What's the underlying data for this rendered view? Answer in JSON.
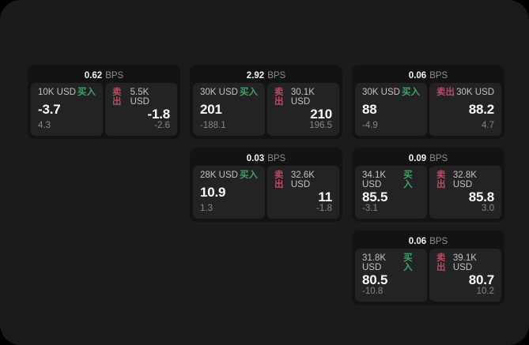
{
  "labels": {
    "bps": "BPS",
    "buy": "买入",
    "sell": "卖出"
  },
  "colors": {
    "background": "#000000",
    "surface": "#1b1b1d",
    "card": "#131315",
    "panel": "#232326",
    "buy_green": "#3aa565",
    "sell_red": "#bf4a5f"
  },
  "cards": [
    {
      "bps": "0.62",
      "buy": {
        "amount": "10K USD",
        "price": "-3.7",
        "sub": "4.3"
      },
      "sell": {
        "amount": "5.5K USD",
        "price": "-1.8",
        "sub": "-2.6"
      }
    },
    {
      "bps": "2.92",
      "buy": {
        "amount": "30K USD",
        "price": "201",
        "sub": "-188.1"
      },
      "sell": {
        "amount": "30.1K USD",
        "price": "210",
        "sub": "196.5"
      }
    },
    {
      "bps": "0.06",
      "buy": {
        "amount": "30K USD",
        "price": "88",
        "sub": "-4.9"
      },
      "sell": {
        "amount": "30K USD",
        "price": "88.2",
        "sub": "4.7"
      }
    },
    {
      "bps": "0.03",
      "buy": {
        "amount": "28K USD",
        "price": "10.9",
        "sub": "1.3"
      },
      "sell": {
        "amount": "32.6K USD",
        "price": "11",
        "sub": "-1.8"
      }
    },
    {
      "bps": "0.09",
      "buy": {
        "amount": "34.1K USD",
        "price": "85.5",
        "sub": "-3.1"
      },
      "sell": {
        "amount": "32.8K USD",
        "price": "85.8",
        "sub": "3.0"
      }
    },
    {
      "bps": "0.06",
      "buy": {
        "amount": "31.8K USD",
        "price": "80.5",
        "sub": "-10.8"
      },
      "sell": {
        "amount": "39.1K USD",
        "price": "80.7",
        "sub": "10.2"
      }
    }
  ]
}
